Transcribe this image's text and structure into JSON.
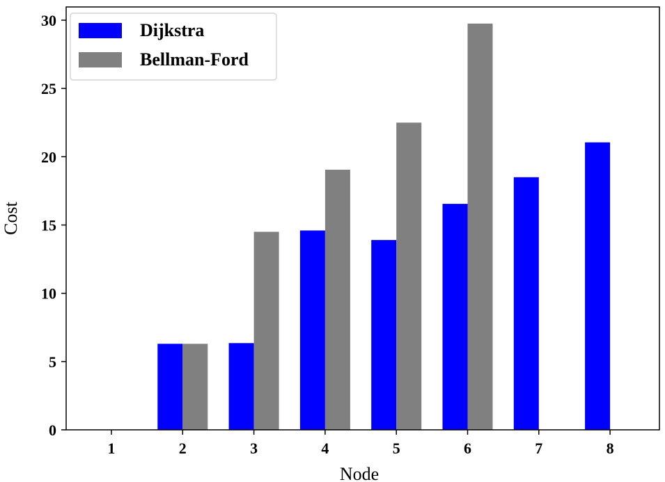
{
  "chart_data": {
    "type": "bar",
    "categories": [
      "1",
      "2",
      "3",
      "4",
      "5",
      "6",
      "7",
      "8"
    ],
    "series": [
      {
        "name": "Dijkstra",
        "color": "#0000ff",
        "values": [
          0,
          6.3,
          6.35,
          14.6,
          13.9,
          16.55,
          18.5,
          21.05
        ]
      },
      {
        "name": "Bellman-Ford",
        "color": "#808080",
        "values": [
          0,
          6.3,
          14.5,
          19.05,
          22.5,
          29.75,
          0,
          0
        ]
      }
    ],
    "xlabel": "Node",
    "ylabel": "Cost",
    "ylim": [
      0,
      30
    ],
    "yticks": [
      "0",
      "5",
      "10",
      "15",
      "20",
      "25",
      "30"
    ],
    "grid": false,
    "legend_position": "top-left"
  }
}
